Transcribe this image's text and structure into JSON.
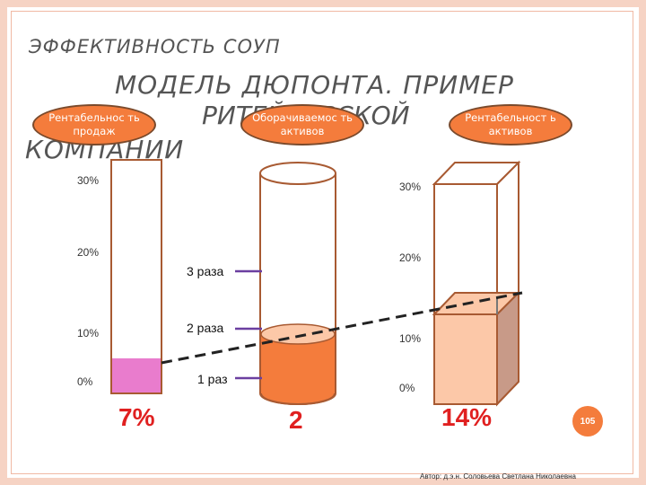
{
  "title": {
    "line1": "ЭФФЕКТИВНОСТЬ СОУП",
    "line2": "МОДЕЛЬ ДЮПОНТА. ПРИМЕР",
    "line3": "РИТЕЙЛЕРСКОЙ",
    "line4": "КОМПАНИИ"
  },
  "labels": {
    "profitability_of_sales": "Рентабельнос ть продаж",
    "asset_turnover": "Оборачиваемос ть активов",
    "return_on_assets": "Рентабельност ь активов"
  },
  "left_scale": [
    "30%",
    "20%",
    "10%",
    "0%"
  ],
  "right_scale": [
    "30%",
    "20%",
    "10%",
    "0%"
  ],
  "turnover_scale": [
    "3 раза",
    "2 раза",
    "1 раз"
  ],
  "values": {
    "profitability_of_sales": "7%",
    "asset_turnover": "2",
    "return_on_assets": "14%"
  },
  "measures": {
    "profitability_of_sales_fraction": 0.07,
    "asset_turnover_times": 2,
    "return_on_assets_fraction": 0.14
  },
  "colors": {
    "pink_fill": "#e97ccd",
    "orange": "#f47c3c",
    "peach": "#fcc8a8",
    "outline": "#a85a32",
    "value_red": "#e02020",
    "tick_purple": "#6b3fa0"
  },
  "page_number": "105",
  "footer": "Автор: д.э.н. Соловьева Светлана Николаевна"
}
